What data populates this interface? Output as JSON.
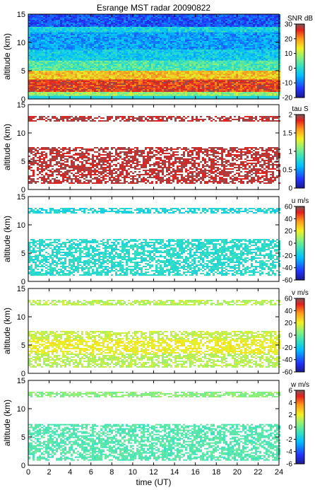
{
  "chart_data": [
    {
      "type": "heatmap",
      "title": "Esrange MST radar 20090822",
      "xlabel": "",
      "ylabel": "altitude (km)",
      "xlim": [
        0,
        24
      ],
      "ylim": [
        0,
        15
      ],
      "yticks": [
        0,
        5,
        10,
        15
      ],
      "colorbar_label": "SNR dB",
      "colorbar_range": [
        -20,
        30
      ],
      "colorbar_ticks": [
        -20,
        -10,
        0,
        10,
        20,
        30
      ],
      "layers": [
        {
          "alt_min": 0.6,
          "alt_max": 1.3,
          "value": 8
        },
        {
          "alt_min": 1.3,
          "alt_max": 3.5,
          "value": 25
        },
        {
          "alt_min": 3.5,
          "alt_max": 5.2,
          "value": 17
        },
        {
          "alt_min": 5.2,
          "alt_max": 7.0,
          "value": 3
        },
        {
          "alt_min": 7.0,
          "alt_max": 8.8,
          "value": -3
        },
        {
          "alt_min": 8.8,
          "alt_max": 12.0,
          "value": -7
        },
        {
          "alt_min": 12.0,
          "alt_max": 12.8,
          "value": -2
        },
        {
          "alt_min": 12.8,
          "alt_max": 15.0,
          "value": -12
        }
      ]
    },
    {
      "type": "heatmap",
      "ylabel": "altitude (km)",
      "xlim": [
        0,
        24
      ],
      "ylim": [
        0,
        15
      ],
      "yticks": [
        0,
        5,
        10,
        15
      ],
      "colorbar_label": "tau S",
      "colorbar_range": [
        0,
        2
      ],
      "colorbar_ticks": [
        0,
        0.5,
        1,
        1.5,
        2
      ],
      "layers": [
        {
          "alt_min": 1.0,
          "alt_max": 7.5,
          "value": 1.9
        },
        {
          "alt_min": 12.2,
          "alt_max": 13.0,
          "value": 1.9
        }
      ]
    },
    {
      "type": "heatmap",
      "ylabel": "altitude (km)",
      "xlim": [
        0,
        24
      ],
      "ylim": [
        0,
        15
      ],
      "yticks": [
        0,
        5,
        10,
        15
      ],
      "colorbar_label": "u m/s",
      "colorbar_range": [
        -60,
        60
      ],
      "colorbar_ticks": [
        -60,
        -40,
        -20,
        0,
        20,
        40,
        60
      ],
      "layers": [
        {
          "alt_min": 1.0,
          "alt_max": 7.5,
          "value": -12
        },
        {
          "alt_min": 12.2,
          "alt_max": 13.0,
          "value": -15
        }
      ]
    },
    {
      "type": "heatmap",
      "ylabel": "altitude (km)",
      "xlim": [
        0,
        24
      ],
      "ylim": [
        0,
        15
      ],
      "yticks": [
        0,
        5,
        10,
        15
      ],
      "colorbar_label": "v m/s",
      "colorbar_range": [
        -60,
        60
      ],
      "colorbar_ticks": [
        -60,
        -40,
        -20,
        0,
        20,
        40,
        60
      ],
      "layers": [
        {
          "alt_min": 1.0,
          "alt_max": 3.5,
          "value": 12
        },
        {
          "alt_min": 3.5,
          "alt_max": 6.0,
          "value": 20
        },
        {
          "alt_min": 6.0,
          "alt_max": 7.5,
          "value": 14
        },
        {
          "alt_min": 12.0,
          "alt_max": 13.0,
          "value": 12
        }
      ]
    },
    {
      "type": "heatmap",
      "xlabel": "time (UT)",
      "ylabel": "altitude (km)",
      "xlim": [
        0,
        24
      ],
      "ylim": [
        0,
        15
      ],
      "xticks": [
        0,
        2,
        4,
        6,
        8,
        10,
        12,
        14,
        16,
        18,
        20,
        22,
        24
      ],
      "yticks": [
        0,
        5,
        10,
        15
      ],
      "colorbar_label": "w m/s",
      "colorbar_range": [
        -6,
        6
      ],
      "colorbar_ticks": [
        -6,
        -4,
        -2,
        0,
        2,
        4,
        6
      ],
      "layers": [
        {
          "alt_min": 0.8,
          "alt_max": 7.3,
          "value": -0.5
        },
        {
          "alt_min": 12.0,
          "alt_max": 13.0,
          "value": 0.5
        }
      ]
    }
  ]
}
